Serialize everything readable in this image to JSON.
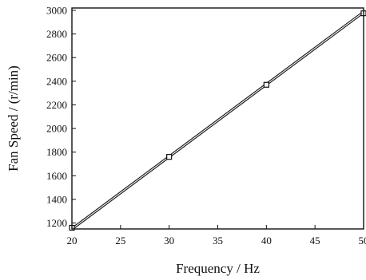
{
  "chart_data": {
    "type": "scatter",
    "title": "",
    "xlabel": "Frequency / Hz",
    "ylabel": "Fan Speed / (r/min)",
    "xlim": [
      20,
      50
    ],
    "ylim": [
      1150,
      3020
    ],
    "x_ticks": [
      20,
      25,
      30,
      35,
      40,
      45,
      50
    ],
    "y_ticks": [
      1200,
      1400,
      1600,
      1800,
      2000,
      2200,
      2400,
      2600,
      2800,
      3000
    ],
    "grid": false,
    "legend": "none",
    "series": [
      {
        "kind": "markers",
        "marker": "square",
        "x": [
          20,
          30,
          40,
          50
        ],
        "y": [
          1160,
          1760,
          2370,
          2975
        ]
      },
      {
        "kind": "fit-line",
        "style": "double-line",
        "x": [
          20,
          50
        ],
        "y": [
          1150,
          2985
        ]
      }
    ],
    "colors": {
      "line": "#222222",
      "marker": "#111111",
      "axis": "#111111"
    }
  }
}
